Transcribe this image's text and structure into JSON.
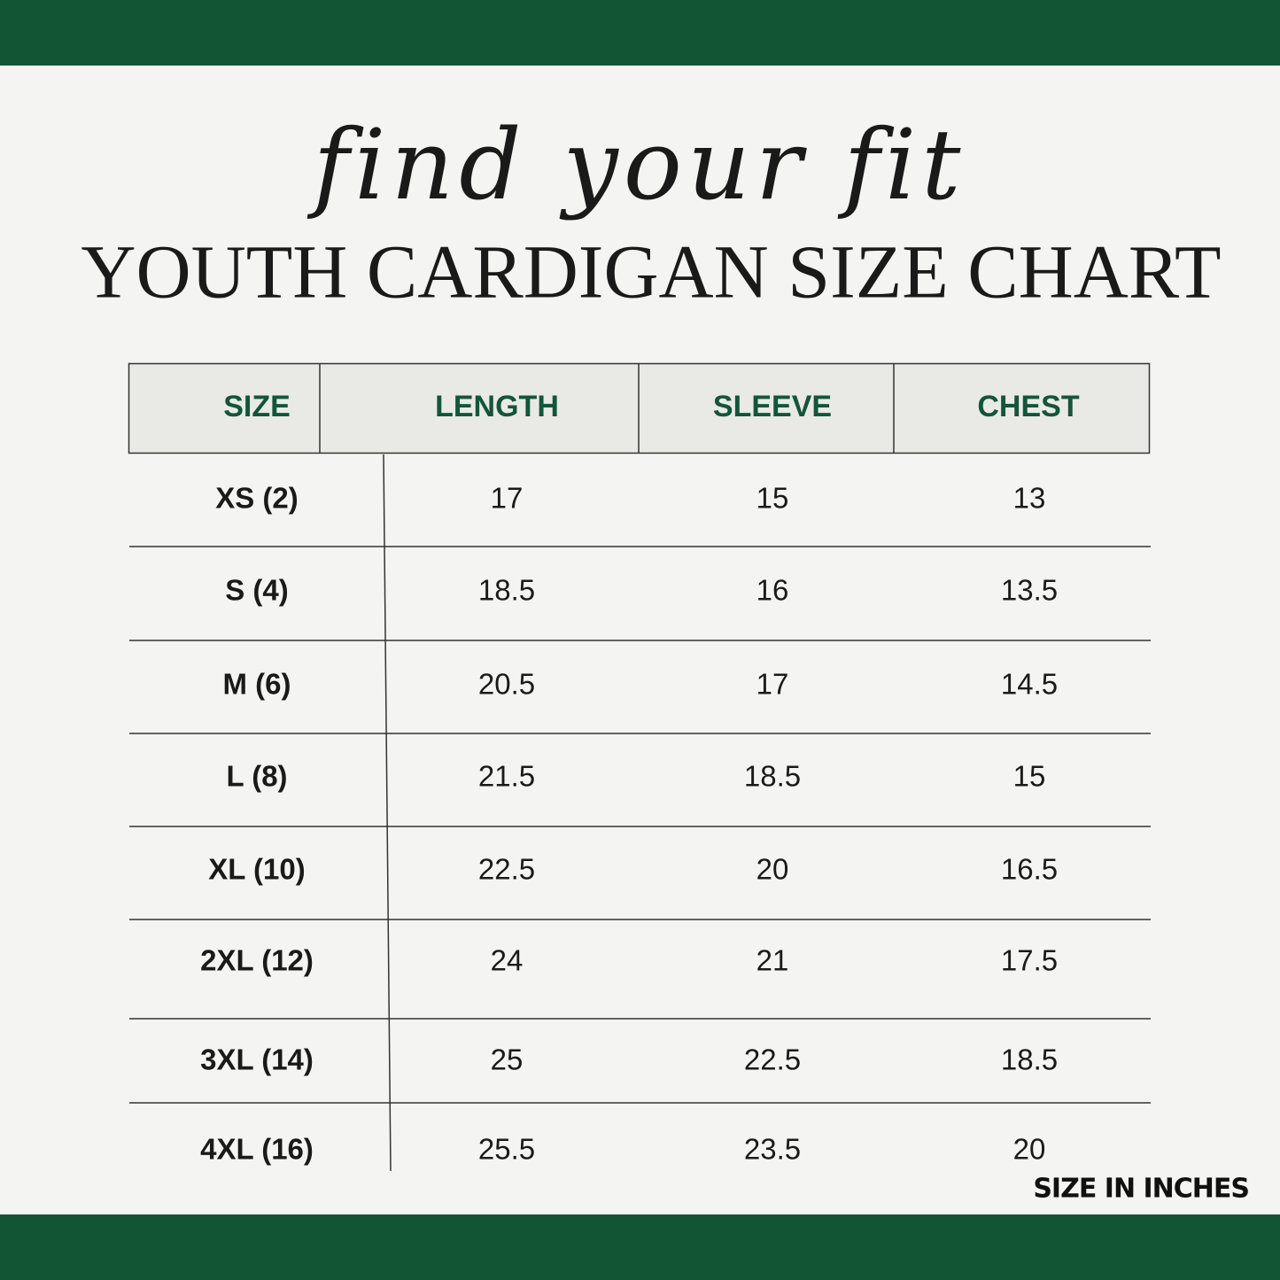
{
  "header": {
    "script_title": "find your fit",
    "title": "YOUTH CARDIGAN SIZE CHART"
  },
  "table": {
    "columns": [
      "SIZE",
      "LENGTH",
      "SLEEVE",
      "CHEST"
    ],
    "rows": [
      [
        "XS (2)",
        "17",
        "15",
        "13"
      ],
      [
        "S (4)",
        "18.5",
        "16",
        "13.5"
      ],
      [
        "M (6)",
        "20.5",
        "17",
        "14.5"
      ],
      [
        "L (8)",
        "21.5",
        "18.5",
        "15"
      ],
      [
        "XL (10)",
        "22.5",
        "20",
        "16.5"
      ],
      [
        "2XL (12)",
        "24",
        "21",
        "17.5"
      ],
      [
        "3XL (14)",
        "25",
        "22.5",
        "18.5"
      ],
      [
        "4XL (16)",
        "25.5",
        "23.5",
        "20"
      ]
    ]
  },
  "footer": {
    "note": "SIZE IN INCHES"
  }
}
